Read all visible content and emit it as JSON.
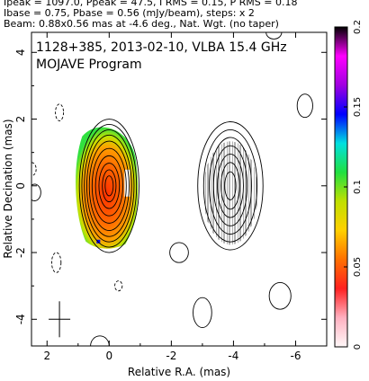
{
  "header": {
    "line1": "Ipeak = 1097.0, Ppeak = 47.5, I RMS = 0.15, P RMS = 0.18",
    "line2": "Ibase = 0.75, Pbase = 0.56 (mJy/beam), steps: x 2",
    "line3": "Beam: 0.88x0.56 mas at -4.6 deg., Nat. Wgt. (no taper)"
  },
  "chart_data": {
    "type": "contour",
    "title": "1128+385, 2013-02-10, VLBA 15.4 GHz",
    "subtitle": "MOJAVE Program",
    "xlabel": "Relative R.A. (mas)",
    "ylabel": "Relative Decination (mas)",
    "xlim": [
      2.5,
      -7.0
    ],
    "ylim": [
      -4.8,
      4.6
    ],
    "x_ticks": [
      2,
      0,
      -2,
      -4,
      -6
    ],
    "y_ticks": [
      4,
      2,
      0,
      -2,
      -4
    ],
    "colorbar": {
      "ticks": [
        0,
        0.05,
        0.1,
        0.15,
        0.2
      ],
      "range": [
        0,
        0.2
      ],
      "colors": [
        "#fff8f8",
        "#ffb0c0",
        "#ff2020",
        "#ff7000",
        "#ffd000",
        "#c0e000",
        "#20e040",
        "#00e0e0",
        "#0000ff",
        "#a000e0",
        "#ff00ff",
        "#000000"
      ]
    },
    "beam": {
      "major_mas": 0.88,
      "minor_mas": 0.56,
      "pa_deg": -4.6
    },
    "total_intensity": [
      {
        "name": "core",
        "cx": 0.0,
        "cy": 0.0,
        "levels": [
          {
            "rx": 0.13,
            "ry": 0.3
          },
          {
            "rx": 0.22,
            "ry": 0.48
          },
          {
            "rx": 0.33,
            "ry": 0.68
          },
          {
            "rx": 0.44,
            "ry": 0.9
          },
          {
            "rx": 0.55,
            "ry": 1.12
          },
          {
            "rx": 0.64,
            "ry": 1.34
          },
          {
            "rx": 0.72,
            "ry": 1.52
          },
          {
            "rx": 0.8,
            "ry": 1.68
          },
          {
            "rx": 0.88,
            "ry": 1.84
          },
          {
            "rx": 0.96,
            "ry": 2.0
          }
        ]
      },
      {
        "name": "jet",
        "cx": -3.9,
        "cy": 0.0,
        "levels": [
          {
            "rx": 0.18,
            "ry": 0.42
          },
          {
            "rx": 0.3,
            "ry": 0.7
          },
          {
            "rx": 0.42,
            "ry": 0.95
          },
          {
            "rx": 0.54,
            "ry": 1.2
          },
          {
            "rx": 0.68,
            "ry": 1.45
          },
          {
            "rx": 0.86,
            "ry": 1.68
          },
          {
            "rx": 1.05,
            "ry": 1.92
          }
        ]
      }
    ],
    "small_contours": [
      {
        "cx": 2.4,
        "cy": -0.2,
        "rx": 0.2,
        "ry": 0.25
      },
      {
        "cx": -2.25,
        "cy": -2.0,
        "rx": 0.3,
        "ry": 0.3
      },
      {
        "cx": -3.0,
        "cy": -3.8,
        "rx": 0.3,
        "ry": 0.45
      },
      {
        "cx": -5.5,
        "cy": -3.3,
        "rx": 0.35,
        "ry": 0.4
      },
      {
        "cx": -5.3,
        "cy": 4.6,
        "rx": 0.25,
        "ry": 0.2
      },
      {
        "cx": -6.3,
        "cy": 2.4,
        "rx": 0.25,
        "ry": 0.35
      },
      {
        "cx": 0.3,
        "cy": -4.8,
        "rx": 0.3,
        "ry": 0.3
      }
    ],
    "dashed_contours": [
      {
        "cx": 2.5,
        "cy": 0.5,
        "rx": 0.15,
        "ry": 0.2
      },
      {
        "cx": 1.6,
        "cy": 2.2,
        "rx": 0.13,
        "ry": 0.25
      },
      {
        "cx": 1.7,
        "cy": -2.3,
        "rx": 0.15,
        "ry": 0.3
      },
      {
        "cx": -0.3,
        "cy": -3.0,
        "rx": 0.12,
        "ry": 0.15
      }
    ]
  }
}
